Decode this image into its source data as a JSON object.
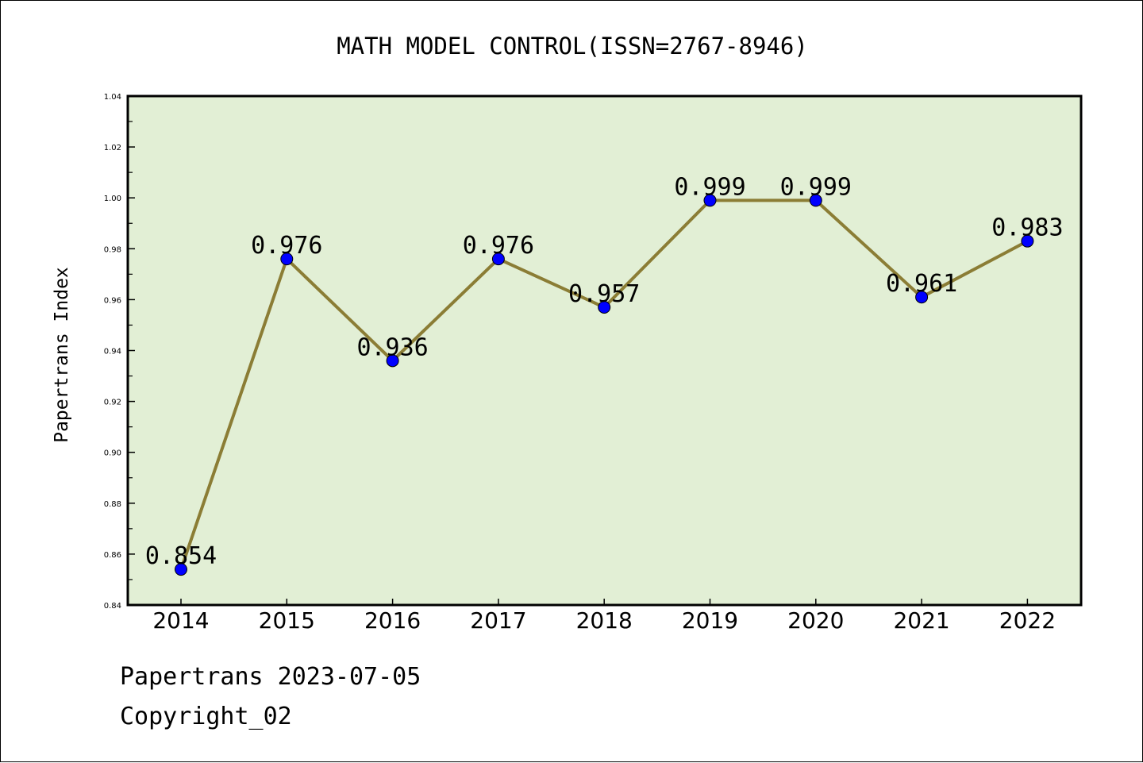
{
  "chart_data": {
    "type": "line",
    "title": "MATH MODEL CONTROL(ISSN=2767-8946)",
    "xlabel": "",
    "ylabel": "Papertrans Index",
    "categories": [
      "2014",
      "2015",
      "2016",
      "2017",
      "2018",
      "2019",
      "2020",
      "2021",
      "2022"
    ],
    "series": [
      {
        "values": [
          0.854,
          0.976,
          0.936,
          0.976,
          0.957,
          0.999,
          0.999,
          0.961,
          0.983
        ],
        "data_labels": [
          "0.854",
          "0.976",
          "0.936",
          "0.976",
          "0.957",
          "0.999",
          "0.999",
          "0.961",
          "0.983"
        ],
        "line_color": "#8b7d35",
        "marker_color": "#0000ff"
      }
    ],
    "ylim": [
      0.84,
      1.04
    ],
    "yticks": [
      "0.84",
      "0.86",
      "0.88",
      "0.90",
      "0.92",
      "0.94",
      "0.96",
      "0.98",
      "1.00",
      "1.02",
      "1.04"
    ],
    "plot_background": "#e2efd5",
    "grid": false,
    "legend": "none"
  },
  "footer": {
    "line1": "Papertrans 2023-07-05",
    "line2": "Copyright_02"
  }
}
